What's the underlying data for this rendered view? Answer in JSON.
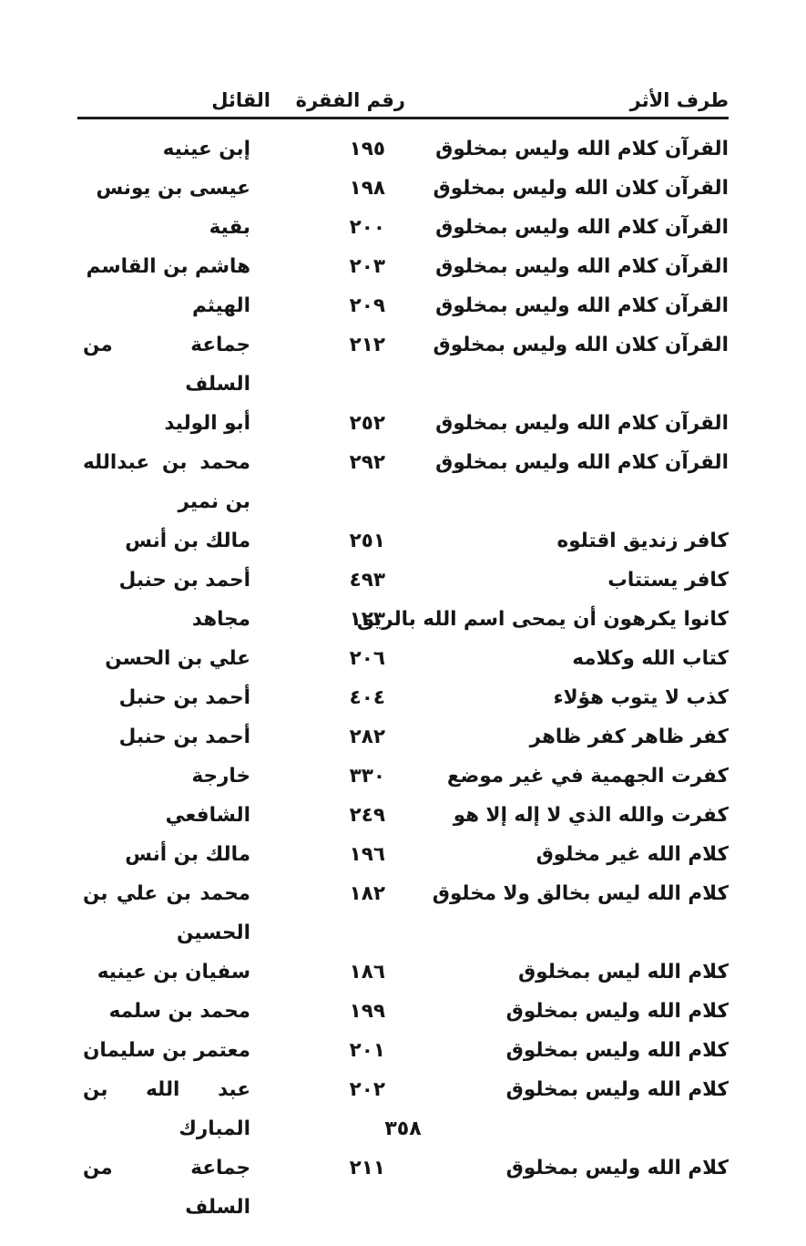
{
  "page": {
    "page_number": "٣٥٨"
  },
  "table": {
    "headers": {
      "matn": "طرف الأثر",
      "number": "رقم الفقرة",
      "speaker": "القائل"
    },
    "rows": [
      {
        "matn": "القرآن كلام الله وليس بمخلوق",
        "number": "١٩٥",
        "speaker": "إبن عينيه"
      },
      {
        "matn": "القرآن كلان الله وليس بمخلوق",
        "number": "١٩٨",
        "speaker": "عيسى بن يونس"
      },
      {
        "matn": "القرآن كلام الله وليس بمخلوق",
        "number": "٢٠٠",
        "speaker": "بقية"
      },
      {
        "matn": "القرآن كلام الله وليس بمخلوق",
        "number": "٢٠٣",
        "speaker": "هاشم بن القاسم"
      },
      {
        "matn": "القرآن كلام الله وليس بمخلوق",
        "number": "٢٠٩",
        "speaker": "الهيثم"
      },
      {
        "matn": "القرآن كلان الله وليس بمخلوق",
        "number": "٢١٢",
        "speaker": "جماعة من السلف"
      },
      {
        "matn": "القرآن كلام الله وليس بمخلوق",
        "number": "٢٥٢",
        "speaker": "أبو الوليد"
      },
      {
        "matn": "القرآن كلام الله وليس بمخلوق",
        "number": "٢٩٢",
        "speaker": "محمد بن عبدالله بن نمير"
      },
      {
        "matn": "كافر زنديق اقتلوه",
        "number": "٢٥١",
        "speaker": "مالك بن أنس"
      },
      {
        "matn": "كافر يستتاب",
        "number": "٤٩٣",
        "speaker": "أحمد بن حنبل"
      },
      {
        "matn": "كانوا يكرهون أن يمحى اسم الله بالريق",
        "number": "١٢٣",
        "speaker": "مجاهد"
      },
      {
        "matn": "كتاب الله وكلامه",
        "number": "٢٠٦",
        "speaker": "علي بن الحسن"
      },
      {
        "matn": "كذب لا يتوب هؤلاء",
        "number": "٤٠٤",
        "speaker": "أحمد بن حنبل"
      },
      {
        "matn": "كفر ظاهر كفر ظاهر",
        "number": "٢٨٢",
        "speaker": "أحمد بن حنبل"
      },
      {
        "matn": "كفرت الجهمية في غير موضع",
        "number": "٣٣٠",
        "speaker": "خارجة"
      },
      {
        "matn": "كفرت والله الذي لا إله إلا هو",
        "number": "٢٤٩",
        "speaker": "الشافعي"
      },
      {
        "matn": "كلام الله غير مخلوق",
        "number": "١٩٦",
        "speaker": "مالك بن أنس"
      },
      {
        "matn": "كلام الله ليس بخالق ولا مخلوق",
        "number": "١٨٢",
        "speaker": "محمد بن علي بن الحسين"
      },
      {
        "matn": "كلام الله ليس بمخلوق",
        "number": "١٨٦",
        "speaker": "سفيان بن عينيه"
      },
      {
        "matn": "كلام الله وليس بمخلوق",
        "number": "١٩٩",
        "speaker": "محمد بن سلمه"
      },
      {
        "matn": "كلام الله وليس بمخلوق",
        "number": "٢٠١",
        "speaker": "معتمر بن سليمان"
      },
      {
        "matn": "كلام الله وليس بمخلوق",
        "number": "٢٠٢",
        "speaker": "عبد الله بن المبارك"
      },
      {
        "matn": "كلام الله وليس بمخلوق",
        "number": "٢١١",
        "speaker": "جماعة من السلف"
      }
    ]
  }
}
